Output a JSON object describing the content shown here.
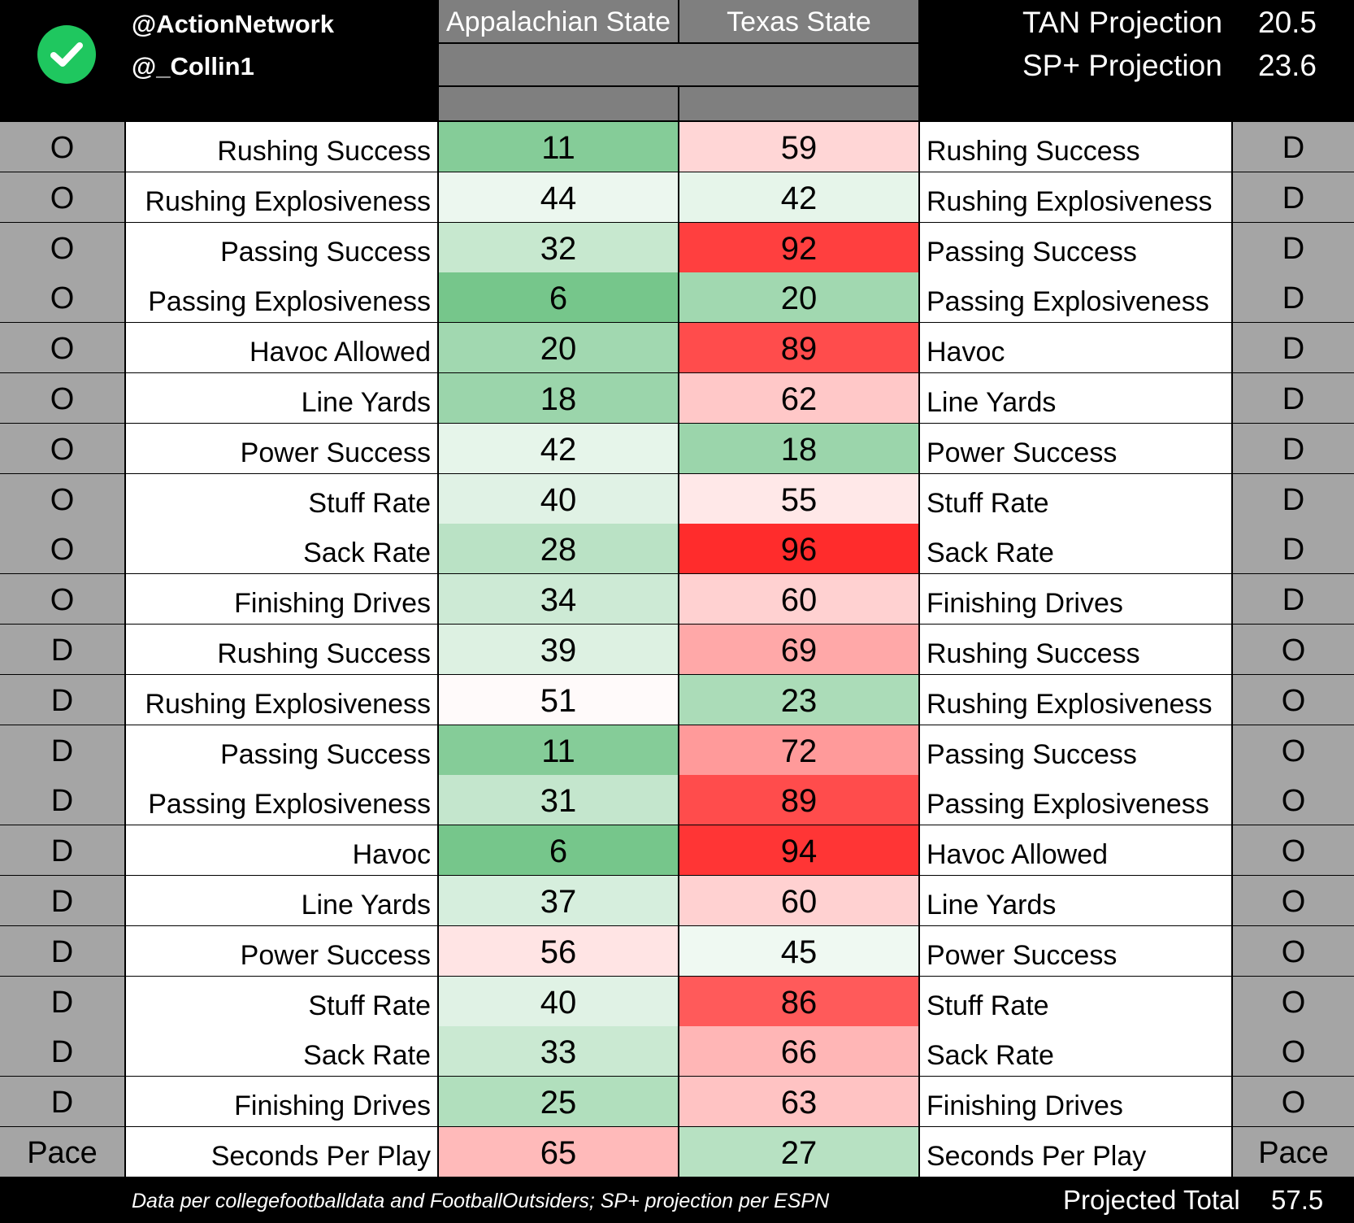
{
  "header": {
    "handle_1": "@ActionNetwork",
    "handle_2": "@_Collin1",
    "team_left": "Appalachian State",
    "team_right": "Texas State",
    "projections": [
      {
        "label": "TAN Projection",
        "value": "20.5"
      },
      {
        "label": "SP+ Projection",
        "value": "23.6"
      }
    ]
  },
  "rows": [
    {
      "left_side": "O",
      "left_label": "Rushing Success",
      "left_value": "11",
      "right_value": "59",
      "right_label": "Rushing Success",
      "right_side": "D"
    },
    {
      "left_side": "O",
      "left_label": "Rushing Explosiveness",
      "left_value": "44",
      "right_value": "42",
      "right_label": "Rushing Explosiveness",
      "right_side": "D"
    },
    {
      "left_side": "O",
      "left_label": "Passing Success",
      "left_value": "32",
      "right_value": "92",
      "right_label": "Passing Success",
      "right_side": "D"
    },
    {
      "left_side": "O",
      "left_label": "Passing Explosiveness",
      "left_value": "6",
      "right_value": "20",
      "right_label": "Passing Explosiveness",
      "right_side": "D"
    },
    {
      "left_side": "O",
      "left_label": "Havoc Allowed",
      "left_value": "20",
      "right_value": "89",
      "right_label": "Havoc",
      "right_side": "D"
    },
    {
      "left_side": "O",
      "left_label": "Line Yards",
      "left_value": "18",
      "right_value": "62",
      "right_label": "Line Yards",
      "right_side": "D"
    },
    {
      "left_side": "O",
      "left_label": "Power Success",
      "left_value": "42",
      "right_value": "18",
      "right_label": "Power Success",
      "right_side": "D"
    },
    {
      "left_side": "O",
      "left_label": "Stuff Rate",
      "left_value": "40",
      "right_value": "55",
      "right_label": "Stuff Rate",
      "right_side": "D"
    },
    {
      "left_side": "O",
      "left_label": "Sack Rate",
      "left_value": "28",
      "right_value": "96",
      "right_label": "Sack Rate",
      "right_side": "D"
    },
    {
      "left_side": "O",
      "left_label": "Finishing Drives",
      "left_value": "34",
      "right_value": "60",
      "right_label": "Finishing Drives",
      "right_side": "D"
    },
    {
      "left_side": "D",
      "left_label": "Rushing Success",
      "left_value": "39",
      "right_value": "69",
      "right_label": "Rushing Success",
      "right_side": "O"
    },
    {
      "left_side": "D",
      "left_label": "Rushing Explosiveness",
      "left_value": "51",
      "right_value": "23",
      "right_label": "Rushing Explosiveness",
      "right_side": "O"
    },
    {
      "left_side": "D",
      "left_label": "Passing Success",
      "left_value": "11",
      "right_value": "72",
      "right_label": "Passing Success",
      "right_side": "O"
    },
    {
      "left_side": "D",
      "left_label": "Passing Explosiveness",
      "left_value": "31",
      "right_value": "89",
      "right_label": "Passing Explosiveness",
      "right_side": "O"
    },
    {
      "left_side": "D",
      "left_label": "Havoc",
      "left_value": "6",
      "right_value": "94",
      "right_label": "Havoc Allowed",
      "right_side": "O"
    },
    {
      "left_side": "D",
      "left_label": "Line Yards",
      "left_value": "37",
      "right_value": "60",
      "right_label": "Line Yards",
      "right_side": "O"
    },
    {
      "left_side": "D",
      "left_label": "Power Success",
      "left_value": "56",
      "right_value": "45",
      "right_label": "Power Success",
      "right_side": "O"
    },
    {
      "left_side": "D",
      "left_label": "Stuff Rate",
      "left_value": "40",
      "right_value": "86",
      "right_label": "Stuff Rate",
      "right_side": "O"
    },
    {
      "left_side": "D",
      "left_label": "Sack Rate",
      "left_value": "33",
      "right_value": "66",
      "right_label": "Sack Rate",
      "right_side": "O"
    },
    {
      "left_side": "D",
      "left_label": "Finishing Drives",
      "left_value": "25",
      "right_value": "63",
      "right_label": "Finishing Drives",
      "right_side": "O"
    },
    {
      "left_side": "Pace",
      "left_label": "Seconds Per Play",
      "left_value": "65",
      "right_value": "27",
      "right_label": "Seconds Per Play",
      "right_side": "Pace"
    }
  ],
  "footer": {
    "source": "Data per collegefootballdata and FootballOutsiders; SP+ projection per ESPN",
    "projected_total_label": "Projected Total",
    "projected_total_value": "57.5"
  },
  "colors": {
    "green_scale": "#63be7b",
    "neutral": "#ffffff",
    "red_scale": "#ff1a1a",
    "side_cell": "#a5a5a5",
    "header_band": "#7f7f7f",
    "check_badge": "#1fc75f"
  },
  "icons": {
    "header_badge": "checkmark-icon"
  }
}
